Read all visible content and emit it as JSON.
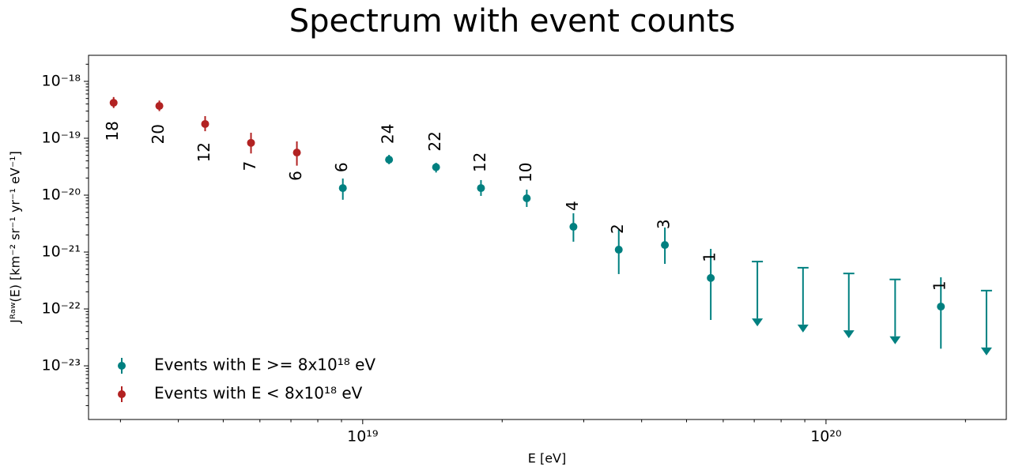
{
  "chart_data": {
    "type": "errorbar",
    "title": "Spectrum with event counts",
    "xlabel": "E [eV]",
    "ylabel": "Jᴿᵃʷ(E) [km⁻² sr⁻¹ yr⁻¹ eV⁻¹]",
    "xscale": "log",
    "yscale": "log",
    "xlim": [
      2.56e+18,
      2.45e+20
    ],
    "ylim": [
      1.14e-24,
      2.87e-18
    ],
    "xticks": [
      {
        "value": 1e+19,
        "label": "10¹⁹"
      },
      {
        "value": 1e+20,
        "label": "10²⁰"
      }
    ],
    "yticks": [
      {
        "value": 1e-18,
        "label": "10⁻¹⁸"
      },
      {
        "value": 1e-19,
        "label": "10⁻¹⁹"
      },
      {
        "value": 1e-20,
        "label": "10⁻²⁰"
      },
      {
        "value": 1e-21,
        "label": "10⁻²¹"
      },
      {
        "value": 1e-22,
        "label": "10⁻²²"
      },
      {
        "value": 1e-23,
        "label": "10⁻²³"
      }
    ],
    "legend_position": "lower left",
    "series": [
      {
        "name": "Events with E >= 8x10¹⁸ eV",
        "color": "#008080",
        "label_color": "#2f4f4f",
        "x": [
          9.06e+18,
          1.14e+19,
          1.44e+19,
          1.8e+19,
          2.26e+19,
          2.85e+19,
          3.57e+19,
          4.49e+19,
          5.64e+19,
          7.11e+19,
          8.92e+19,
          1.12e+20,
          1.41e+20,
          1.77e+20,
          2.22e+20
        ],
        "values": [
          1.33e-20,
          4.2e-20,
          3.1e-20,
          1.33e-20,
          8.8e-21,
          2.78e-21,
          1.1e-21,
          1.33e-21,
          3.5e-22,
          null,
          null,
          null,
          null,
          1.1e-22,
          null
        ],
        "err_low": [
          8.3e-21,
          3.5e-20,
          2.5e-20,
          9.7e-21,
          6.2e-21,
          1.52e-21,
          4.1e-22,
          6.2e-22,
          6.4e-23,
          null,
          null,
          null,
          null,
          2e-23,
          null
        ],
        "err_high": [
          1.96e-20,
          5.1e-20,
          3.7e-20,
          1.84e-20,
          1.25e-20,
          4.8e-21,
          2.5e-21,
          2.7e-21,
          1.14e-21,
          null,
          null,
          null,
          null,
          3.6e-22,
          null
        ],
        "upper_limits": [
          null,
          null,
          null,
          null,
          null,
          null,
          null,
          null,
          null,
          6.8e-22,
          5.3e-22,
          4.2e-22,
          3.3e-22,
          null,
          2.1e-22
        ],
        "counts": [
          6,
          24,
          22,
          12,
          10,
          4,
          2,
          3,
          1,
          null,
          null,
          null,
          null,
          1,
          null
        ]
      },
      {
        "name": "Events with E < 8x10¹⁸ eV",
        "color": "#b22222",
        "label_color": "#8b0000",
        "x": [
          2.9e+18,
          3.64e+18,
          4.57e+18,
          5.74e+18,
          7.21e+18
        ],
        "values": [
          4.2e-19,
          3.7e-19,
          1.78e-19,
          8.3e-20,
          5.6e-20
        ],
        "err_low": [
          3.4e-19,
          3e-19,
          1.33e-19,
          5.4e-20,
          3.3e-20
        ],
        "err_high": [
          5.3e-19,
          4.6e-19,
          2.45e-19,
          1.25e-19,
          8.8e-20
        ],
        "counts": [
          18,
          20,
          12,
          7,
          6
        ]
      }
    ]
  }
}
